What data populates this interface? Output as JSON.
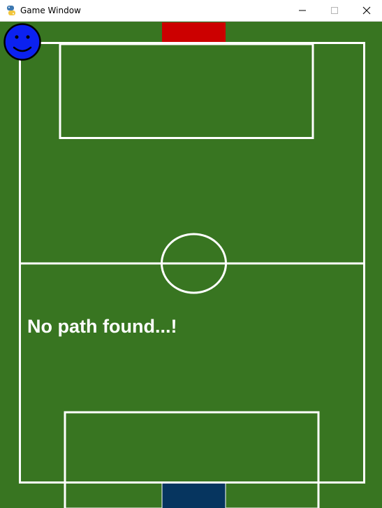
{
  "window": {
    "title": "Game Window",
    "app_icon": "python-snake-icon",
    "controls": [
      "minimize-icon",
      "maximize-icon",
      "close-icon"
    ]
  },
  "game": {
    "status_message": "No path found...!",
    "colors": {
      "pitch": "#387521",
      "lines": "#ffffff",
      "top_goal": "#cc0000",
      "bottom_goal": "#06355f",
      "player": "#0b21f0"
    },
    "player_icon": "smiley-face-icon"
  }
}
